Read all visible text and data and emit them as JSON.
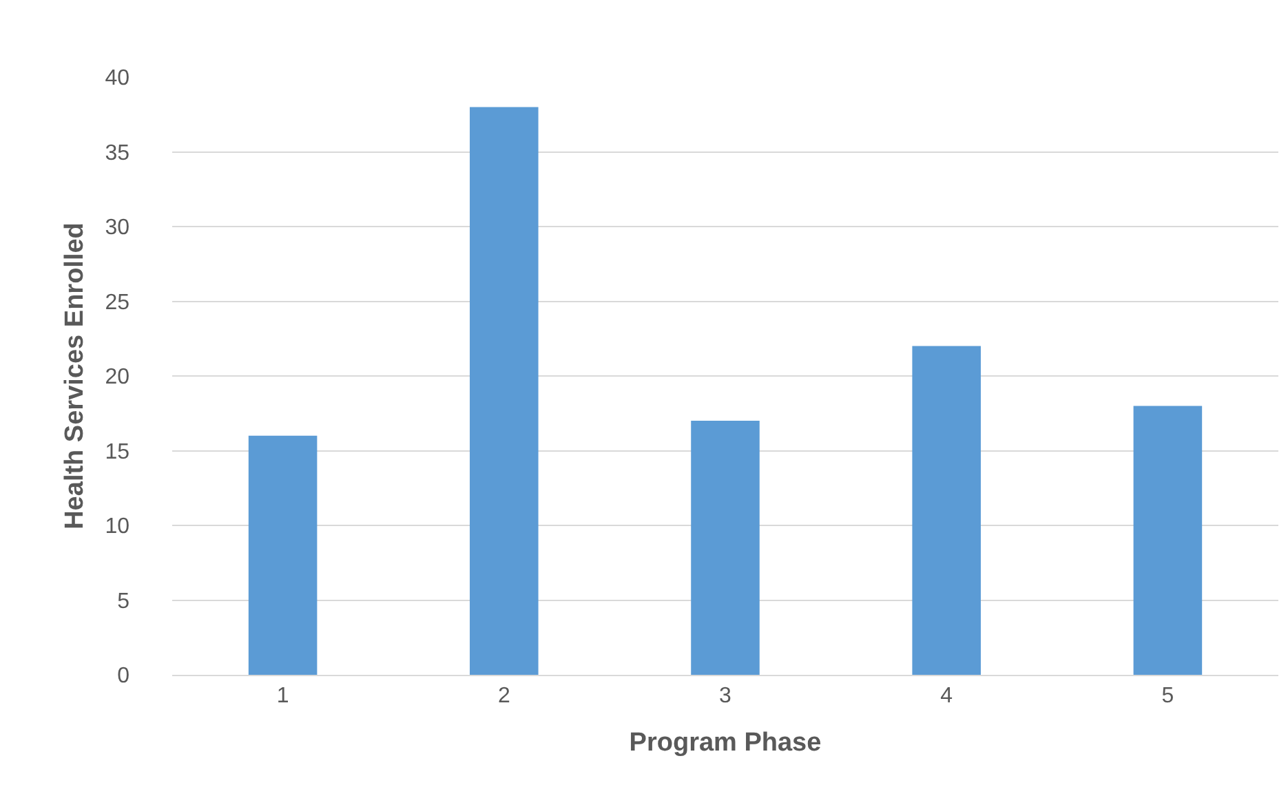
{
  "chart_data": {
    "type": "bar",
    "xlabel": "Program Phase",
    "ylabel": "Health Services Enrolled",
    "categories": [
      "1",
      "2",
      "3",
      "4",
      "5"
    ],
    "series": [
      {
        "color": "#5b9bd5",
        "values": [
          16,
          38,
          17,
          22,
          18
        ]
      }
    ],
    "ylim": [
      0,
      40
    ],
    "yticks": [
      0,
      5,
      10,
      15,
      20,
      25,
      30,
      35,
      40
    ],
    "grid": "y"
  }
}
